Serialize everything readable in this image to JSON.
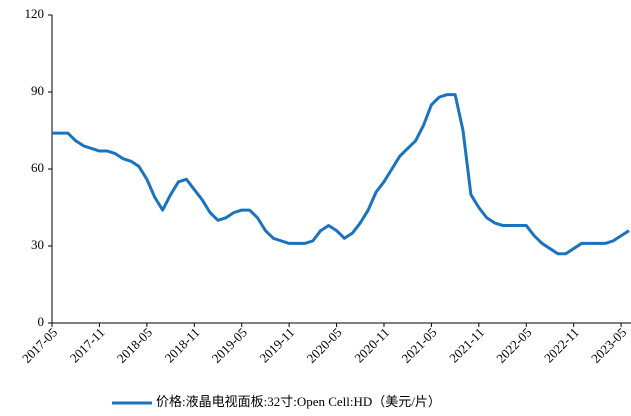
{
  "chart_data": {
    "type": "line",
    "categories": [
      "2017-05",
      null,
      null,
      null,
      null,
      null,
      "2017-11",
      null,
      null,
      null,
      null,
      null,
      "2018-05",
      null,
      null,
      null,
      null,
      null,
      "2018-11",
      null,
      null,
      null,
      null,
      null,
      "2019-05",
      null,
      null,
      null,
      null,
      null,
      "2019-11",
      null,
      null,
      null,
      null,
      null,
      "2020-05",
      null,
      null,
      null,
      null,
      null,
      "2020-11",
      null,
      null,
      null,
      null,
      null,
      "2021-05",
      null,
      null,
      null,
      null,
      null,
      "2021-11",
      null,
      null,
      null,
      null,
      null,
      "2022-05",
      null,
      null,
      null,
      null,
      null,
      "2022-11",
      null,
      null,
      null,
      null,
      null,
      "2023-05",
      null
    ],
    "series": [
      {
        "name": "价格:液晶电视面板:32寸:Open Cell:HD（美元/片）",
        "color": "#1a73c0",
        "values": [
          74,
          74,
          74,
          71,
          69,
          68,
          67,
          67,
          66,
          64,
          63,
          61,
          56,
          49,
          44,
          50,
          55,
          56,
          52,
          48,
          43,
          40,
          41,
          43,
          44,
          44,
          41,
          36,
          33,
          32,
          31,
          31,
          31,
          32,
          36,
          38,
          36,
          33,
          35,
          39,
          44,
          51,
          55,
          60,
          65,
          68,
          71,
          77,
          85,
          88,
          89,
          89,
          75,
          50,
          45,
          41,
          39,
          38,
          38,
          38,
          38,
          34,
          31,
          29,
          27,
          27,
          29,
          31,
          31,
          31,
          31,
          32,
          34,
          36
        ]
      }
    ],
    "ylim": [
      0,
      120
    ],
    "yticks": [
      0,
      30,
      60,
      90,
      120
    ],
    "grid": false
  }
}
